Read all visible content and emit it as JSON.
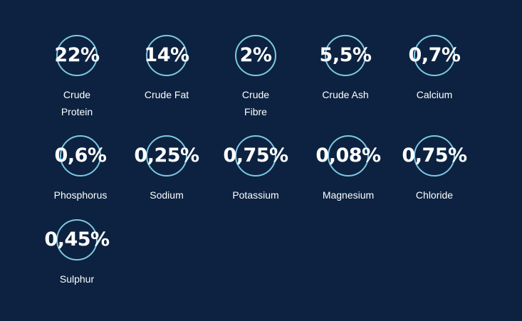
{
  "accent_color": "#7ec8e3",
  "background_color": "#0c2240",
  "ring_icon": "circle-ring-icon",
  "stats": [
    {
      "value": "22%",
      "label_lines": [
        "Crude",
        "Protein"
      ]
    },
    {
      "value": "14%",
      "label_lines": [
        "Crude Fat",
        ""
      ]
    },
    {
      "value": "2%",
      "label_lines": [
        "Crude",
        "Fibre"
      ]
    },
    {
      "value": "5,5%",
      "label_lines": [
        "Crude Ash",
        ""
      ]
    },
    {
      "value": "0,7%",
      "label_lines": [
        "Calcium",
        ""
      ]
    },
    {
      "value": "0,6%",
      "label_lines": [
        "Phosphorus",
        ""
      ]
    },
    {
      "value": "0,25%",
      "label_lines": [
        "Sodium",
        ""
      ]
    },
    {
      "value": "0,75%",
      "label_lines": [
        "Potassium",
        ""
      ]
    },
    {
      "value": "0,08%",
      "label_lines": [
        "Magnesium",
        ""
      ]
    },
    {
      "value": "0,75%",
      "label_lines": [
        "Chloride",
        ""
      ]
    },
    {
      "value": "0,45%",
      "label_lines": [
        "Sulphur",
        ""
      ]
    }
  ]
}
